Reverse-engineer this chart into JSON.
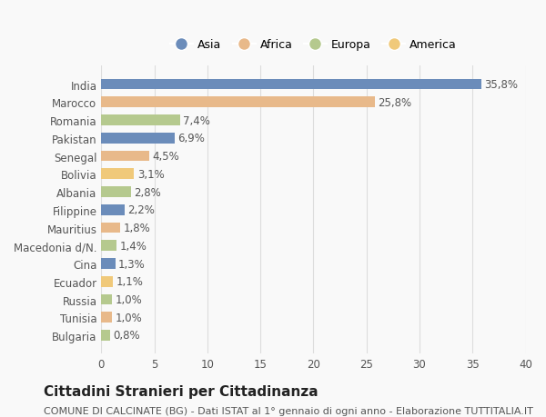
{
  "categories": [
    "India",
    "Marocco",
    "Romania",
    "Pakistan",
    "Senegal",
    "Bolivia",
    "Albania",
    "Filippine",
    "Mauritius",
    "Macedonia d/N.",
    "Cina",
    "Ecuador",
    "Russia",
    "Tunisia",
    "Bulgaria"
  ],
  "values": [
    35.8,
    25.8,
    7.4,
    6.9,
    4.5,
    3.1,
    2.8,
    2.2,
    1.8,
    1.4,
    1.3,
    1.1,
    1.0,
    1.0,
    0.8
  ],
  "labels": [
    "35,8%",
    "25,8%",
    "7,4%",
    "6,9%",
    "4,5%",
    "3,1%",
    "2,8%",
    "2,2%",
    "1,8%",
    "1,4%",
    "1,3%",
    "1,1%",
    "1,0%",
    "1,0%",
    "0,8%"
  ],
  "colors": [
    "#6b8cba",
    "#e8b98a",
    "#b5c98e",
    "#6b8cba",
    "#e8b98a",
    "#f0c97a",
    "#b5c98e",
    "#6b8cba",
    "#e8b98a",
    "#b5c98e",
    "#6b8cba",
    "#f0c97a",
    "#b5c98e",
    "#e8b98a",
    "#b5c98e"
  ],
  "legend": [
    {
      "label": "Asia",
      "color": "#6b8cba"
    },
    {
      "label": "Africa",
      "color": "#e8b98a"
    },
    {
      "label": "Europa",
      "color": "#b5c98e"
    },
    {
      "label": "America",
      "color": "#f0c97a"
    }
  ],
  "xlim": [
    0,
    40
  ],
  "xticks": [
    0,
    5,
    10,
    15,
    20,
    25,
    30,
    35,
    40
  ],
  "title": "Cittadini Stranieri per Cittadinanza",
  "subtitle": "COMUNE DI CALCINATE (BG) - Dati ISTAT al 1° gennaio di ogni anno - Elaborazione TUTTITALIA.IT",
  "background_color": "#f9f9f9",
  "grid_color": "#dddddd",
  "bar_height": 0.6,
  "label_fontsize": 8.5,
  "tick_fontsize": 8.5,
  "title_fontsize": 11,
  "subtitle_fontsize": 8
}
